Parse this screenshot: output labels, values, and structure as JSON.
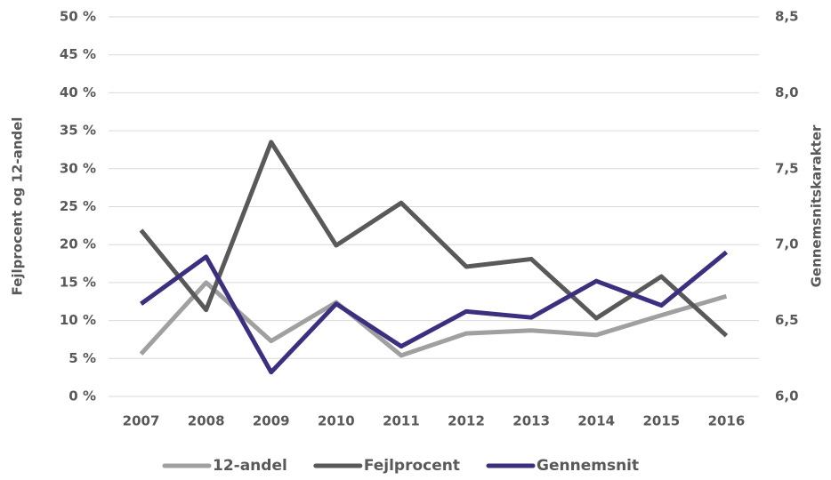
{
  "chart_data": {
    "type": "line",
    "categories": [
      "2007",
      "2008",
      "2009",
      "2010",
      "2011",
      "2012",
      "2013",
      "2014",
      "2015",
      "2016"
    ],
    "series": [
      {
        "name": "12-andel",
        "color": "#a0a0a0",
        "values": [
          5.6,
          15.0,
          7.3,
          12.4,
          5.4,
          8.3,
          8.7,
          8.1,
          10.7,
          13.2
        ]
      },
      {
        "name": "Fejlprocent",
        "color": "#595959",
        "values": [
          21.9,
          11.4,
          33.5,
          19.9,
          25.5,
          17.1,
          18.1,
          10.3,
          15.8,
          8.0
        ]
      },
      {
        "name": "Gennemsnit",
        "color": "#3b2f7f",
        "axis": "y2",
        "values": [
          6.61,
          6.92,
          6.16,
          6.61,
          6.33,
          6.56,
          6.52,
          6.76,
          6.6,
          6.95
        ]
      }
    ],
    "ylabel": "Fejlprocent og 12-andel",
    "y2label": "Gennemsnitskarakter",
    "ylim": [
      0,
      50
    ],
    "yticks": [
      {
        "value": 0,
        "label": "0 %"
      },
      {
        "value": 5,
        "label": "5 %"
      },
      {
        "value": 10,
        "label": "10 %"
      },
      {
        "value": 15,
        "label": "15 %"
      },
      {
        "value": 20,
        "label": "20 %"
      },
      {
        "value": 25,
        "label": "25 %"
      },
      {
        "value": 30,
        "label": "30 %"
      },
      {
        "value": 35,
        "label": "35 %"
      },
      {
        "value": 40,
        "label": "40 %"
      },
      {
        "value": 45,
        "label": "45 %"
      },
      {
        "value": 50,
        "label": "50 %"
      }
    ],
    "y2lim": [
      6,
      8.5
    ],
    "y2ticks": [
      {
        "value": 6,
        "label": "6,0"
      },
      {
        "value": 6.5,
        "label": "6,5"
      },
      {
        "value": 7,
        "label": "7,0"
      },
      {
        "value": 7.5,
        "label": "7,5"
      },
      {
        "value": 8,
        "label": "8,0"
      },
      {
        "value": 8.5,
        "label": "8,5"
      }
    ],
    "grid": true,
    "legend": "bottom"
  }
}
